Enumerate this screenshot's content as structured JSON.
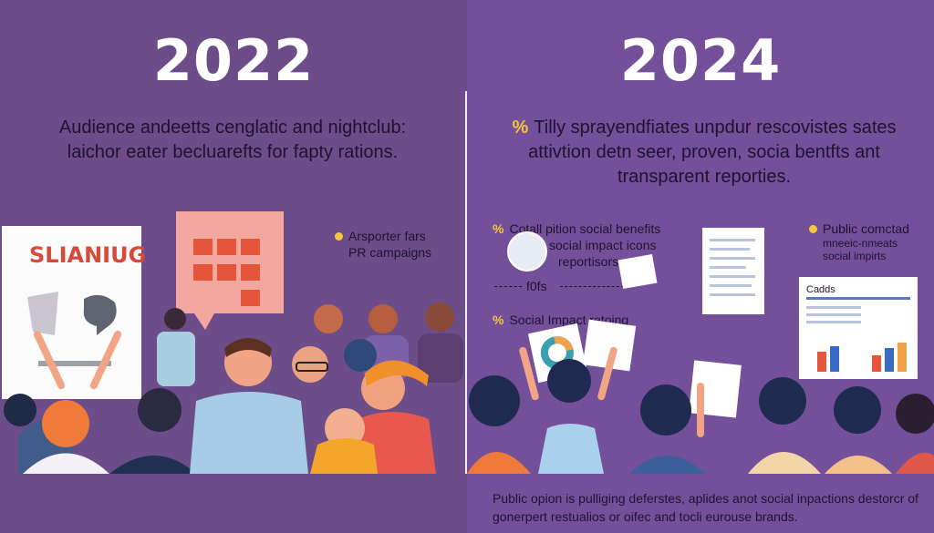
{
  "left": {
    "year": "2022",
    "intro": "Audience andeetts cenglatic and nightclub: laichor eater becluarefts for fapty rations.",
    "poster_title": "SLIANIUG",
    "callout_line1": "Arsporter fars",
    "callout_line2": "PR campaigns"
  },
  "right": {
    "year": "2024",
    "intro": "Tilly sprayendfiates unpdur rescovistes sates attivtion detn seer, proven, socia bentfts ant transparent reporties.",
    "callout_a_1": "Cotall pition social benefits",
    "callout_a_2": "social impact icons",
    "callout_a_3": "reportisors",
    "callout_b": "f0fs",
    "callout_c": "Social Impact retoing",
    "callout_d_1": "Public comctad",
    "callout_d_2": "mneeic-nmeats",
    "callout_d_3": "social impirts",
    "report_title": "Cadds"
  },
  "caption": "Public opion is pulliging deferstes, aplides anot social inpactions destorcr of gonerpert restualios or oifec and tocli eurouse brands.",
  "colors": {
    "bullet": "#f5c63a",
    "left_bg": "#6d4c8a",
    "right_bg": "#74509a"
  }
}
